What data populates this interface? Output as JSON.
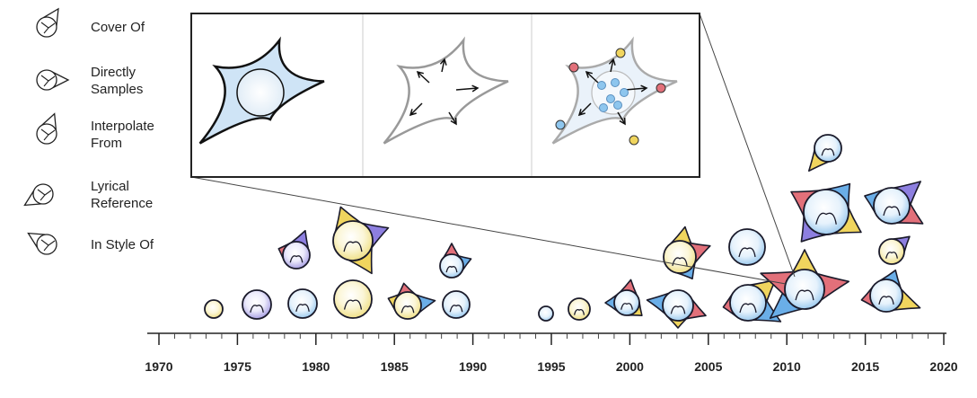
{
  "legend": [
    {
      "lines": [
        "Cover Of"
      ]
    },
    {
      "lines": [
        "Directly",
        "Samples"
      ]
    },
    {
      "lines": [
        "Interpolate",
        "From"
      ]
    },
    {
      "lines": [
        "Lyrical",
        "Reference"
      ]
    },
    {
      "lines": [
        "In Style Of"
      ]
    }
  ],
  "axis": {
    "xlim": [
      1970,
      2020
    ],
    "xticks": [
      1970,
      1975,
      1980,
      1985,
      1990,
      1995,
      2000,
      2005,
      2010,
      2015,
      2020
    ],
    "xminorticks": [
      1971,
      1972,
      1973,
      1974,
      1976,
      1977,
      1978,
      1979,
      1981,
      1982,
      1983,
      1984,
      1986,
      1987,
      1988,
      1989,
      1991,
      1992,
      1993,
      1994,
      1996,
      1997,
      1998,
      1999,
      2001,
      2002,
      2003,
      2004,
      2006,
      2007,
      2008,
      2009,
      2011,
      2012,
      2013,
      2014,
      2016,
      2017,
      2018,
      2019
    ]
  }
}
